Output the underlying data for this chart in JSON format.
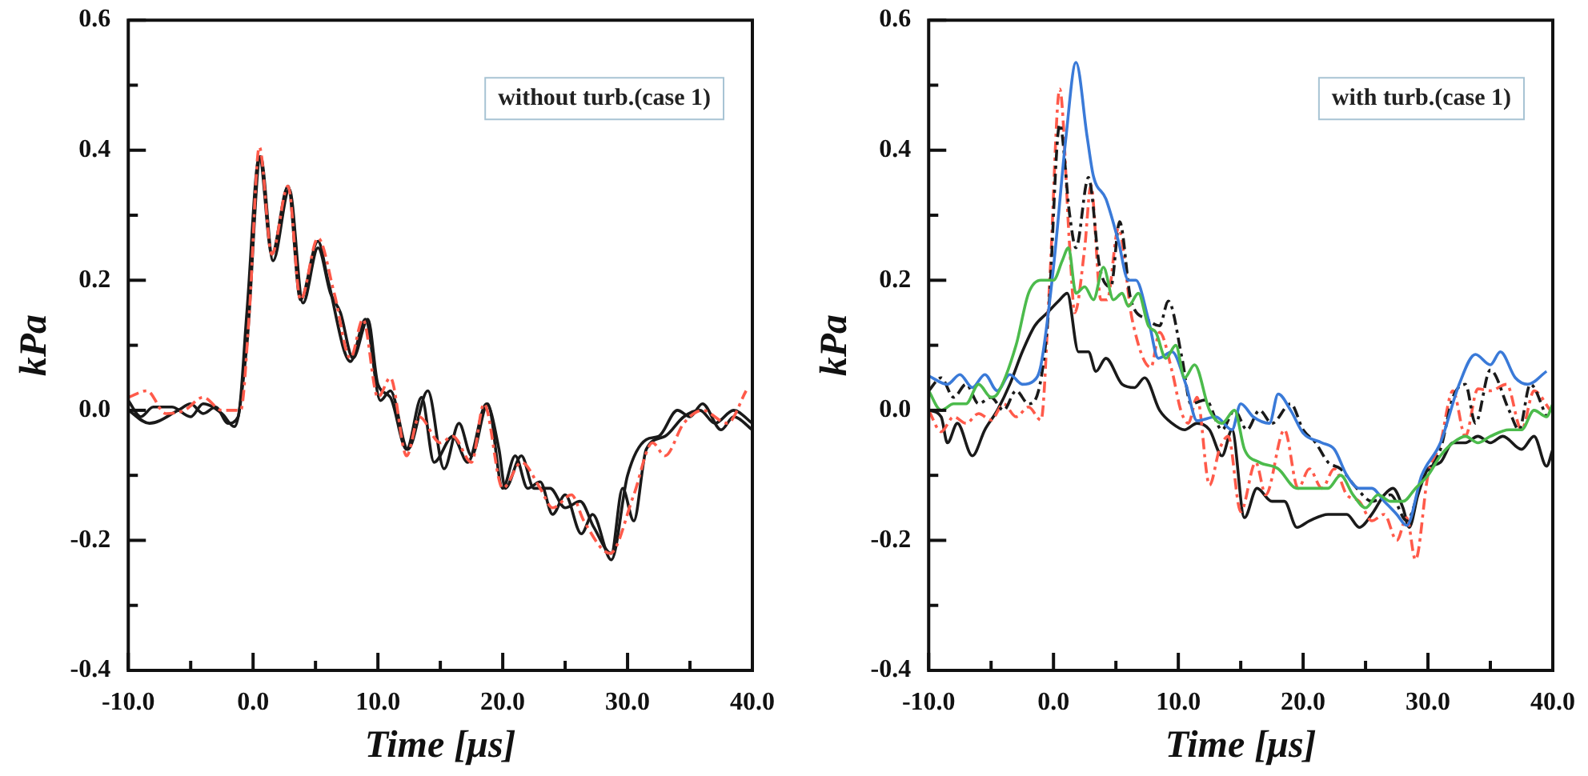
{
  "chart_data": [
    {
      "type": "line",
      "xlabel": "Time [μs]",
      "ylabel": "kPa",
      "annotations": [
        "without turb.(case 1)"
      ],
      "xlim": [
        -10,
        40
      ],
      "ylim": [
        -0.4,
        0.6
      ],
      "xticks": [
        {
          "value": -10,
          "label": "-10.0"
        },
        {
          "value": -5,
          "label": null
        },
        {
          "value": 0,
          "label": "0.0"
        },
        {
          "value": 5,
          "label": null
        },
        {
          "value": 10,
          "label": "10.0"
        },
        {
          "value": 15,
          "label": null
        },
        {
          "value": 20,
          "label": "20.0"
        },
        {
          "value": 25,
          "label": null
        },
        {
          "value": 30,
          "label": "30.0"
        },
        {
          "value": 35,
          "label": null
        },
        {
          "value": 40,
          "label": "40.0"
        }
      ],
      "yticks": [
        {
          "value": -0.4,
          "label": "-0.4"
        },
        {
          "value": -0.3,
          "label": null
        },
        {
          "value": -0.2,
          "label": "-0.2"
        },
        {
          "value": -0.1,
          "label": null
        },
        {
          "value": 0,
          "label": "0.0"
        },
        {
          "value": 0.1,
          "label": null
        },
        {
          "value": 0.2,
          "label": "0.2"
        },
        {
          "value": 0.3,
          "label": null
        },
        {
          "value": 0.4,
          "label": "0.4"
        },
        {
          "value": 0.5,
          "label": null
        },
        {
          "value": 0.6,
          "label": "0.6"
        }
      ],
      "series": [
        {
          "color": "#ff5a4a",
          "line_style": "dashed",
          "x": [
            -10,
            -8.5,
            -7,
            -5.5,
            -4,
            -2.5,
            -1,
            -0.3,
            0.5,
            1.5,
            2.8,
            3.8,
            5.2,
            6.5,
            7.8,
            8.8,
            10,
            11,
            12.3,
            13.3,
            15,
            16,
            17.5,
            18.5,
            20,
            21.5,
            23,
            24,
            25.5,
            26.5,
            28.6,
            30.5,
            32,
            33,
            34.5,
            36,
            38,
            39.5
          ],
          "values": [
            0.02,
            0.03,
            -0.005,
            0,
            0.02,
            0,
            0,
            0.15,
            0.405,
            0.24,
            0.345,
            0.17,
            0.265,
            0.18,
            0.08,
            0.14,
            0.02,
            0.05,
            -0.07,
            -0.01,
            -0.05,
            -0.04,
            -0.08,
            0.01,
            -0.12,
            -0.08,
            -0.12,
            -0.15,
            -0.13,
            -0.17,
            -0.22,
            -0.13,
            -0.05,
            -0.07,
            -0.02,
            0,
            -0.02,
            0.03
          ]
        },
        {
          "color": "#1a1a1a",
          "x": [
            -10,
            -8.3,
            -6,
            -5,
            -4,
            -3,
            -2,
            -1.2,
            -0.5,
            0.5,
            1.5,
            2.8,
            3.8,
            5.2,
            6,
            7.8,
            9,
            10.2,
            11,
            12.4,
            14,
            15.3,
            16.5,
            17.5,
            18.8,
            20,
            21,
            22,
            23,
            24,
            25,
            26.3,
            27.2,
            28.7,
            30,
            31.5,
            32.5,
            34,
            35,
            36,
            37.5,
            38.5,
            40
          ],
          "values": [
            0,
            -0.02,
            0,
            0.01,
            -0.005,
            0.005,
            -0.02,
            -0.01,
            0.15,
            0.39,
            0.24,
            0.345,
            0.17,
            0.26,
            0.2,
            0.075,
            0.14,
            0.015,
            0.03,
            -0.06,
            0.03,
            -0.09,
            -0.02,
            -0.07,
            0.01,
            -0.12,
            -0.07,
            -0.12,
            -0.11,
            -0.16,
            -0.13,
            -0.19,
            -0.16,
            -0.23,
            -0.1,
            -0.045,
            -0.04,
            0,
            -0.01,
            0.01,
            -0.03,
            -0.01,
            -0.03
          ]
        },
        {
          "color": "#1a1a1a",
          "x": [
            -10,
            -9,
            -8,
            -6.5,
            -5,
            -4,
            -2.5,
            -1.5,
            -0.5,
            0.6,
            1.6,
            2.9,
            4,
            5.2,
            6.2,
            7,
            8,
            9.2,
            10,
            11,
            12.3,
            13.5,
            14.5,
            16,
            17.2,
            18.7,
            19.7,
            20.2,
            21.5,
            22.5,
            23.8,
            25,
            26.2,
            27.3,
            28.7,
            29.6,
            30.5,
            31.5,
            33,
            34.5,
            35.8,
            37,
            38.5,
            40
          ],
          "values": [
            0.015,
            -0.01,
            0.005,
            0.005,
            -0.01,
            0.01,
            -0.005,
            -0.025,
            0.1,
            0.39,
            0.23,
            0.34,
            0.165,
            0.25,
            0.18,
            0.15,
            0.08,
            0.14,
            0.04,
            0.02,
            -0.06,
            0.02,
            -0.08,
            -0.04,
            -0.08,
            0.01,
            -0.06,
            -0.12,
            -0.07,
            -0.12,
            -0.12,
            -0.15,
            -0.14,
            -0.18,
            -0.22,
            -0.12,
            -0.17,
            -0.06,
            -0.04,
            -0.01,
            0,
            -0.02,
            0,
            -0.02
          ]
        }
      ]
    },
    {
      "type": "line",
      "xlabel": "Time [μs]",
      "ylabel": "kPa",
      "annotations": [
        "with turb.(case 1)"
      ],
      "xlim": [
        -10,
        40
      ],
      "ylim": [
        -0.4,
        0.6
      ],
      "xticks": [
        {
          "value": -10,
          "label": "-10.0"
        },
        {
          "value": -5,
          "label": null
        },
        {
          "value": 0,
          "label": "0.0"
        },
        {
          "value": 5,
          "label": null
        },
        {
          "value": 10,
          "label": "10.0"
        },
        {
          "value": 15,
          "label": null
        },
        {
          "value": 20,
          "label": "20.0"
        },
        {
          "value": 25,
          "label": null
        },
        {
          "value": 30,
          "label": "30.0"
        },
        {
          "value": 35,
          "label": null
        },
        {
          "value": 40,
          "label": "40.0"
        }
      ],
      "yticks": [
        {
          "value": -0.4,
          "label": "-0.4"
        },
        {
          "value": -0.3,
          "label": null
        },
        {
          "value": -0.2,
          "label": "-0.2"
        },
        {
          "value": -0.1,
          "label": null
        },
        {
          "value": 0,
          "label": "0.0"
        },
        {
          "value": 0.1,
          "label": null
        },
        {
          "value": 0.2,
          "label": "0.2"
        },
        {
          "value": 0.3,
          "label": null
        },
        {
          "value": 0.4,
          "label": "0.4"
        },
        {
          "value": 0.5,
          "label": null
        },
        {
          "value": 0.6,
          "label": "0.6"
        }
      ],
      "series": [
        {
          "color": "#4cbb4c",
          "x": [
            -10,
            -9,
            -8,
            -7,
            -6,
            -5,
            -4.5,
            -3,
            -2,
            -1,
            0,
            0.7,
            1.2,
            1.8,
            2.5,
            3.2,
            4,
            4.8,
            5.5,
            6,
            6.8,
            7.6,
            8.2,
            9,
            9.8,
            10.5,
            11.3,
            12.5,
            13.5,
            14.5,
            15.3,
            16.5,
            18,
            19.5,
            21,
            22,
            23,
            24,
            25,
            26,
            27,
            28,
            29,
            30,
            31,
            32,
            33,
            34,
            35,
            36.5,
            37.5,
            38.5,
            39.5,
            40
          ],
          "values": [
            0.03,
            0,
            0.01,
            0.01,
            0.04,
            0.02,
            0.025,
            0.1,
            0.18,
            0.2,
            0.2,
            0.23,
            0.25,
            0.18,
            0.19,
            0.17,
            0.22,
            0.17,
            0.18,
            0.16,
            0.18,
            0.13,
            0.12,
            0.08,
            0.1,
            0.05,
            0.07,
            0,
            -0.02,
            0,
            -0.06,
            -0.08,
            -0.09,
            -0.12,
            -0.12,
            -0.12,
            -0.1,
            -0.13,
            -0.15,
            -0.13,
            -0.14,
            -0.14,
            -0.12,
            -0.1,
            -0.07,
            -0.05,
            -0.04,
            -0.05,
            -0.04,
            -0.03,
            -0.03,
            0,
            -0.01,
            0.01
          ]
        },
        {
          "color": "#3a7ad8",
          "x": [
            -10,
            -8.5,
            -7.5,
            -6.5,
            -5.5,
            -4.5,
            -3.5,
            -2.5,
            -1.6,
            -1,
            0,
            1,
            1.8,
            2.7,
            3.2,
            4.2,
            5.2,
            6,
            6.6,
            7.6,
            8.4,
            9.5,
            10.6,
            11.5,
            13,
            14.3,
            15,
            16,
            17.3,
            18,
            19,
            20,
            21.5,
            22.5,
            23.5,
            24.5,
            25.5,
            26.5,
            27.5,
            28.3,
            29.5,
            31,
            32.5,
            33.8,
            35,
            35.8,
            37,
            38,
            39.5
          ],
          "values": [
            0.053,
            0.04,
            0.055,
            0.035,
            0.055,
            0.03,
            0.055,
            0.04,
            0.045,
            0.07,
            0.22,
            0.42,
            0.535,
            0.42,
            0.36,
            0.325,
            0.26,
            0.2,
            0.2,
            0.14,
            0.08,
            0.09,
            0.04,
            -0.016,
            -0.01,
            -0.03,
            0.01,
            -0.01,
            -0.02,
            0.025,
            0,
            -0.035,
            -0.05,
            -0.06,
            -0.1,
            -0.12,
            -0.12,
            -0.14,
            -0.16,
            -0.177,
            -0.1,
            -0.05,
            0.04,
            0.086,
            0.07,
            0.09,
            0.05,
            0.04,
            0.06
          ]
        },
        {
          "color": "#1a1a1a",
          "line_style": "dashed",
          "x": [
            -10,
            -9,
            -8,
            -7,
            -6,
            -5,
            -4,
            -3,
            -2,
            -1.2,
            -0.4,
            0.5,
            1.3,
            1.8,
            2.8,
            3.7,
            4.6,
            5.3,
            6.2,
            7.5,
            8.5,
            9.2,
            10.3,
            11,
            12.2,
            13.5,
            14.5,
            15.5,
            16.5,
            17.5,
            19,
            20,
            21,
            22,
            23,
            24.3,
            25.5,
            27,
            28.3,
            29.5,
            31,
            32,
            33,
            33.8,
            35,
            36.5,
            37.3,
            38.2,
            39.5
          ],
          "values": [
            0.03,
            0.05,
            0.02,
            0.04,
            0.01,
            0.02,
            0,
            0.03,
            0.01,
            0.03,
            0.15,
            0.44,
            0.3,
            0.25,
            0.358,
            0.22,
            0.19,
            0.29,
            0.17,
            0.14,
            0.13,
            0.168,
            0.08,
            0.01,
            0.016,
            -0.03,
            0,
            -0.03,
            0,
            -0.02,
            0.01,
            -0.03,
            -0.05,
            -0.08,
            -0.09,
            -0.12,
            -0.14,
            -0.13,
            -0.17,
            -0.11,
            -0.06,
            0.02,
            0.04,
            -0.02,
            0.062,
            0,
            -0.03,
            0.04,
            -0.01
          ]
        },
        {
          "color": "#ff5a4a",
          "line_style": "dashed",
          "x": [
            -10,
            -9,
            -8,
            -7,
            -6,
            -5,
            -4,
            -3,
            -2,
            -1,
            -0.3,
            0.5,
            1.3,
            1.7,
            2.5,
            3,
            3.8,
            4.3,
            5.2,
            6.3,
            7.8,
            8.5,
            9.5,
            10.2,
            10.8,
            11.5,
            12.5,
            13.3,
            14,
            15,
            16.2,
            17,
            18.5,
            19.6,
            20.5,
            21.5,
            22.5,
            23.5,
            24.5,
            25.5,
            26.5,
            27.5,
            28.3,
            29,
            30,
            31,
            32,
            33,
            34,
            35,
            36.3,
            37.5,
            38.5,
            39.8
          ],
          "values": [
            0,
            -0.033,
            -0.01,
            -0.02,
            -0.005,
            -0.015,
            0.01,
            -0.01,
            0.005,
            -0.015,
            0.2,
            0.494,
            0.25,
            0.15,
            0.25,
            0.346,
            0.17,
            0.17,
            0.28,
            0.14,
            0.066,
            0.12,
            0.06,
            0,
            -0.02,
            0.02,
            -0.115,
            -0.06,
            -0.04,
            -0.156,
            -0.08,
            -0.13,
            -0.03,
            -0.12,
            -0.09,
            -0.12,
            -0.09,
            -0.13,
            -0.14,
            -0.17,
            -0.16,
            -0.2,
            -0.165,
            -0.23,
            -0.1,
            -0.05,
            0.03,
            -0.04,
            0.033,
            0.03,
            0.04,
            -0.03,
            0.03,
            0
          ]
        },
        {
          "color": "#1a1a1a",
          "x": [
            -10,
            -9,
            -8.5,
            -7.7,
            -6.5,
            -5.5,
            -4.5,
            -3.5,
            -2.5,
            -1.5,
            -0.5,
            0.5,
            1.1,
            2,
            2.8,
            3.4,
            4.2,
            5.5,
            6.5,
            7.3,
            8.5,
            9.5,
            10.5,
            11.5,
            12.5,
            13.5,
            14.3,
            15.3,
            16.3,
            17.5,
            18.5,
            19.5,
            20.5,
            22,
            23.5,
            24.5,
            25.5,
            26.5,
            27.2,
            28,
            28.5,
            29.2,
            30,
            31,
            32,
            33,
            34,
            35,
            36,
            37.5,
            38.5,
            39.5,
            40
          ],
          "values": [
            0,
            -0.01,
            -0.05,
            -0.02,
            -0.07,
            -0.03,
            0,
            0.04,
            0.09,
            0.13,
            0.15,
            0.17,
            0.18,
            0.09,
            0.09,
            0.06,
            0.08,
            0.04,
            0.035,
            0.05,
            0,
            -0.02,
            -0.03,
            -0.02,
            -0.03,
            -0.07,
            -0.03,
            -0.165,
            -0.12,
            -0.14,
            -0.14,
            -0.18,
            -0.17,
            -0.16,
            -0.16,
            -0.18,
            -0.16,
            -0.13,
            -0.12,
            -0.15,
            -0.18,
            -0.13,
            -0.09,
            -0.08,
            -0.05,
            -0.05,
            -0.04,
            -0.05,
            -0.04,
            -0.06,
            -0.04,
            -0.086,
            -0.06
          ]
        }
      ]
    }
  ]
}
